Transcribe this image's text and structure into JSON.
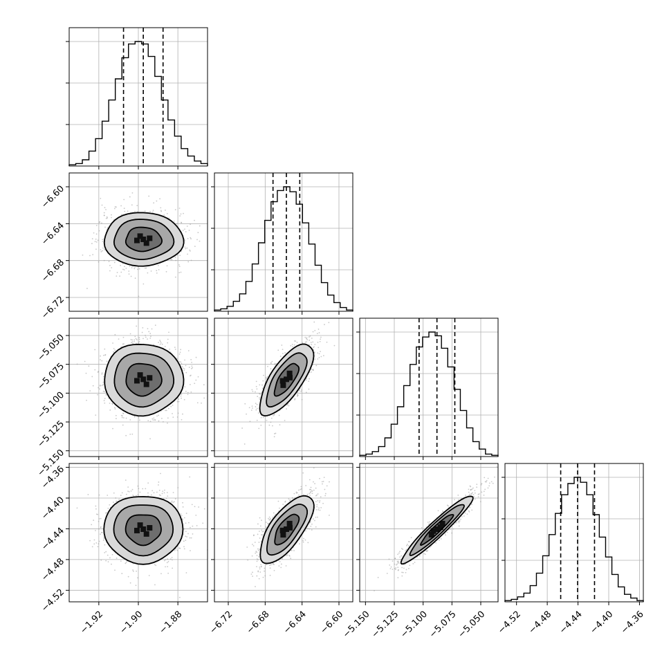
{
  "chart_data": {
    "type": "corner",
    "num_parameters": 4,
    "parameters": [
      {
        "range": [
          -1.935,
          -1.865
        ],
        "ticks": [
          -1.92,
          -1.9,
          -1.88
        ],
        "tick_labels": [
          "−1.92",
          "−1.90",
          "−1.88"
        ],
        "quantiles": [
          -1.9075,
          -1.8975,
          -1.8875
        ],
        "histogram": [
          0.01,
          0.02,
          0.05,
          0.12,
          0.22,
          0.36,
          0.53,
          0.7,
          0.87,
          0.98,
          1.0,
          0.98,
          0.88,
          0.72,
          0.53,
          0.37,
          0.24,
          0.14,
          0.08,
          0.04,
          0.02
        ]
      },
      {
        "range": [
          -6.735,
          -6.585
        ],
        "ticks": [
          -6.72,
          -6.68,
          -6.64,
          -6.6
        ],
        "tick_labels": [
          "−6.72",
          "−6.68",
          "−6.64",
          "−6.60"
        ],
        "quantiles": [
          -6.6715,
          -6.657,
          -6.6425
        ],
        "histogram": [
          0.01,
          0.02,
          0.04,
          0.08,
          0.14,
          0.24,
          0.38,
          0.55,
          0.73,
          0.88,
          0.97,
          1.0,
          0.96,
          0.86,
          0.71,
          0.54,
          0.37,
          0.23,
          0.13,
          0.07,
          0.03,
          0.01
        ]
      },
      {
        "range": [
          -5.155,
          -5.035
        ],
        "ticks": [
          -5.15,
          -5.125,
          -5.1,
          -5.075,
          -5.05
        ],
        "tick_labels": [
          "−5.150",
          "−5.125",
          "−5.100",
          "−5.075",
          "−5.050"
        ],
        "quantiles": [
          -5.1035,
          -5.088,
          -5.0725
        ],
        "histogram": [
          0.01,
          0.02,
          0.04,
          0.08,
          0.15,
          0.26,
          0.4,
          0.57,
          0.74,
          0.88,
          0.96,
          1.0,
          0.97,
          0.87,
          0.72,
          0.54,
          0.37,
          0.23,
          0.12,
          0.06,
          0.02,
          0.01
        ]
      },
      {
        "range": [
          -4.535,
          -4.355
        ],
        "ticks": [
          -4.52,
          -4.48,
          -4.44,
          -4.4,
          -4.36
        ],
        "tick_labels": [
          "−4.52",
          "−4.48",
          "−4.44",
          "−4.40",
          "−4.36"
        ],
        "quantiles": [
          -4.4625,
          -4.4405,
          -4.4185
        ],
        "histogram": [
          0.01,
          0.02,
          0.04,
          0.07,
          0.13,
          0.23,
          0.37,
          0.54,
          0.71,
          0.86,
          0.95,
          1.0,
          0.96,
          0.86,
          0.7,
          0.52,
          0.36,
          0.22,
          0.12,
          0.06,
          0.03,
          0.01
        ]
      }
    ],
    "correlations": [
      {
        "row": 1,
        "col": 0,
        "rho": 0.0
      },
      {
        "row": 2,
        "col": 0,
        "rho": 0.0
      },
      {
        "row": 2,
        "col": 1,
        "rho": 0.72
      },
      {
        "row": 3,
        "col": 0,
        "rho": 0.0
      },
      {
        "row": 3,
        "col": 1,
        "rho": 0.7
      },
      {
        "row": 3,
        "col": 2,
        "rho": 0.95
      }
    ],
    "grid": true,
    "colors": {
      "contour": "#000000",
      "points": "#9a9a9a"
    }
  }
}
